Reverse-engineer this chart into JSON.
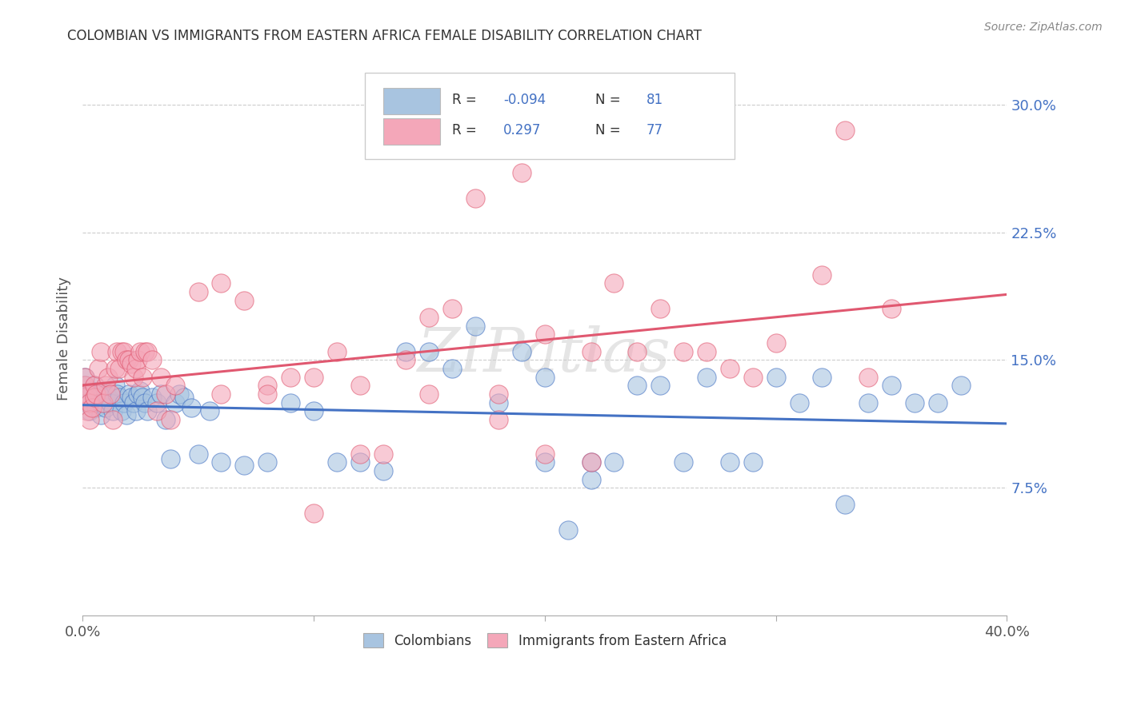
{
  "title": "COLOMBIAN VS IMMIGRANTS FROM EASTERN AFRICA FEMALE DISABILITY CORRELATION CHART",
  "source": "Source: ZipAtlas.com",
  "ylabel": "Female Disability",
  "yticks": [
    "7.5%",
    "15.0%",
    "22.5%",
    "30.0%"
  ],
  "ytick_vals": [
    0.075,
    0.15,
    0.225,
    0.3
  ],
  "xlim": [
    0.0,
    0.4
  ],
  "ylim": [
    0.0,
    0.325
  ],
  "watermark": "ZIPatlas",
  "color_colombian": "#a8c4e0",
  "color_eastern_africa": "#f4a7b9",
  "line_color_colombian": "#4472c4",
  "line_color_eastern_africa": "#e05870",
  "R_colombian": -0.094,
  "N_colombian": 81,
  "R_eastern_africa": 0.297,
  "N_eastern_africa": 77,
  "legend_label_colombian": "Colombians",
  "legend_label_eastern_africa": "Immigrants from Eastern Africa",
  "colombian_x": [
    0.001,
    0.001,
    0.001,
    0.002,
    0.002,
    0.003,
    0.003,
    0.004,
    0.005,
    0.005,
    0.006,
    0.007,
    0.008,
    0.008,
    0.009,
    0.01,
    0.01,
    0.011,
    0.012,
    0.013,
    0.014,
    0.015,
    0.016,
    0.017,
    0.018,
    0.019,
    0.02,
    0.021,
    0.022,
    0.023,
    0.024,
    0.025,
    0.026,
    0.027,
    0.028,
    0.03,
    0.032,
    0.034,
    0.036,
    0.038,
    0.04,
    0.042,
    0.044,
    0.047,
    0.05,
    0.055,
    0.06,
    0.07,
    0.08,
    0.09,
    0.1,
    0.11,
    0.12,
    0.13,
    0.14,
    0.15,
    0.16,
    0.17,
    0.18,
    0.19,
    0.2,
    0.21,
    0.22,
    0.24,
    0.25,
    0.27,
    0.29,
    0.31,
    0.33,
    0.34,
    0.35,
    0.37,
    0.38,
    0.26,
    0.28,
    0.3,
    0.32,
    0.36,
    0.23,
    0.2,
    0.22
  ],
  "colombian_y": [
    0.135,
    0.128,
    0.14,
    0.13,
    0.125,
    0.12,
    0.128,
    0.132,
    0.135,
    0.128,
    0.122,
    0.13,
    0.118,
    0.125,
    0.132,
    0.13,
    0.122,
    0.128,
    0.125,
    0.12,
    0.135,
    0.13,
    0.128,
    0.12,
    0.125,
    0.118,
    0.13,
    0.128,
    0.125,
    0.12,
    0.13,
    0.132,
    0.128,
    0.125,
    0.12,
    0.128,
    0.125,
    0.13,
    0.115,
    0.092,
    0.125,
    0.13,
    0.128,
    0.122,
    0.095,
    0.12,
    0.09,
    0.088,
    0.09,
    0.125,
    0.12,
    0.09,
    0.09,
    0.085,
    0.155,
    0.155,
    0.145,
    0.17,
    0.125,
    0.155,
    0.14,
    0.05,
    0.08,
    0.135,
    0.135,
    0.14,
    0.09,
    0.125,
    0.065,
    0.125,
    0.135,
    0.125,
    0.135,
    0.09,
    0.09,
    0.14,
    0.14,
    0.125,
    0.09,
    0.09,
    0.09
  ],
  "eastern_africa_x": [
    0.001,
    0.001,
    0.001,
    0.002,
    0.002,
    0.003,
    0.003,
    0.004,
    0.005,
    0.005,
    0.006,
    0.007,
    0.008,
    0.009,
    0.01,
    0.011,
    0.012,
    0.013,
    0.014,
    0.015,
    0.016,
    0.017,
    0.018,
    0.019,
    0.02,
    0.021,
    0.022,
    0.023,
    0.024,
    0.025,
    0.026,
    0.027,
    0.028,
    0.03,
    0.032,
    0.034,
    0.036,
    0.038,
    0.04,
    0.05,
    0.06,
    0.07,
    0.08,
    0.09,
    0.1,
    0.11,
    0.12,
    0.13,
    0.14,
    0.15,
    0.16,
    0.17,
    0.18,
    0.19,
    0.2,
    0.21,
    0.22,
    0.23,
    0.24,
    0.25,
    0.26,
    0.27,
    0.28,
    0.29,
    0.3,
    0.32,
    0.33,
    0.34,
    0.35,
    0.22,
    0.2,
    0.18,
    0.15,
    0.12,
    0.1,
    0.08,
    0.06
  ],
  "eastern_africa_y": [
    0.135,
    0.128,
    0.14,
    0.13,
    0.12,
    0.125,
    0.115,
    0.122,
    0.135,
    0.128,
    0.13,
    0.145,
    0.155,
    0.125,
    0.135,
    0.14,
    0.13,
    0.115,
    0.145,
    0.155,
    0.145,
    0.155,
    0.155,
    0.15,
    0.15,
    0.148,
    0.14,
    0.145,
    0.15,
    0.155,
    0.14,
    0.155,
    0.155,
    0.15,
    0.12,
    0.14,
    0.13,
    0.115,
    0.135,
    0.19,
    0.195,
    0.185,
    0.135,
    0.14,
    0.14,
    0.155,
    0.135,
    0.095,
    0.15,
    0.175,
    0.18,
    0.245,
    0.13,
    0.26,
    0.165,
    0.275,
    0.155,
    0.195,
    0.155,
    0.18,
    0.155,
    0.155,
    0.145,
    0.14,
    0.16,
    0.2,
    0.285,
    0.14,
    0.18,
    0.09,
    0.095,
    0.115,
    0.13,
    0.095,
    0.06,
    0.13,
    0.13
  ]
}
